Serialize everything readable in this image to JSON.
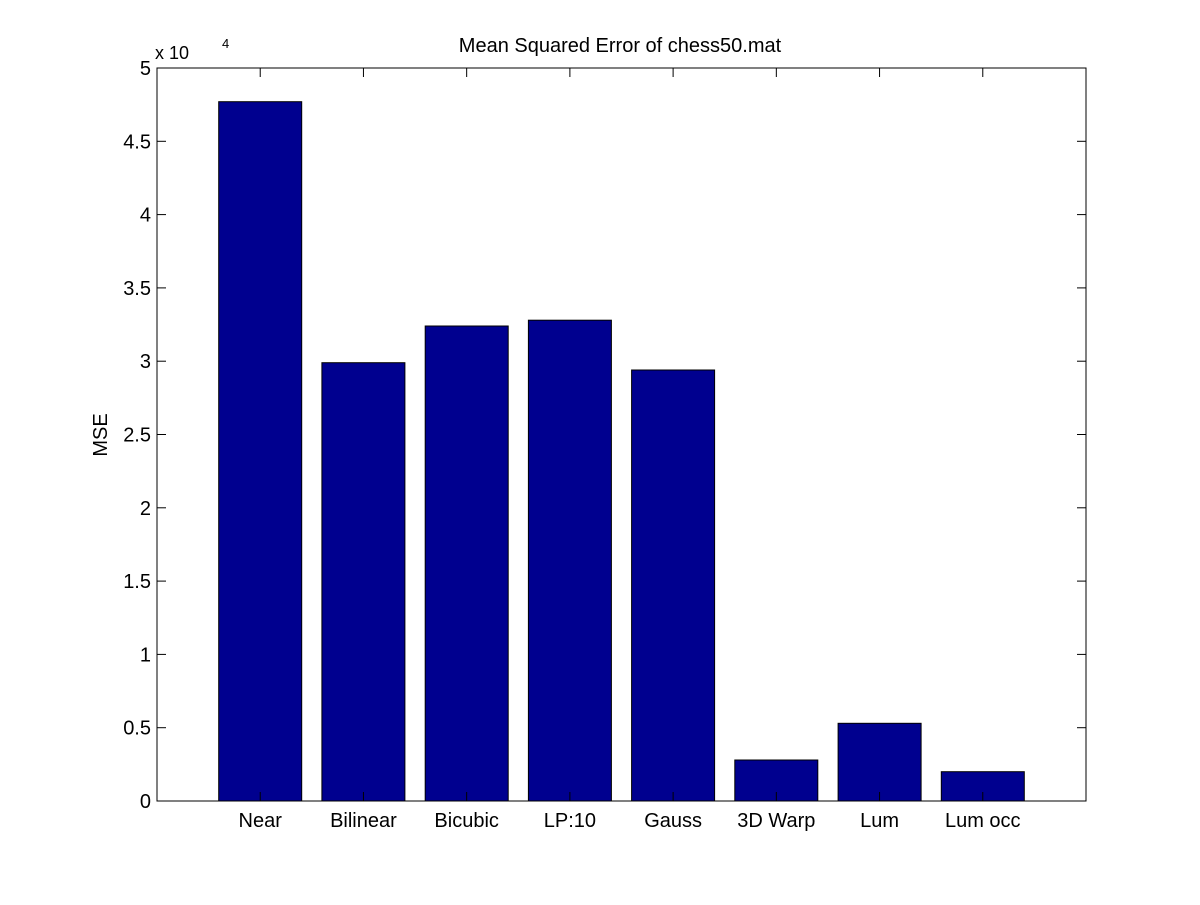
{
  "chart_data": {
    "type": "bar",
    "title": "Mean Squared Error of chess50.mat",
    "xlabel": "",
    "ylabel": "MSE",
    "categories": [
      "Near",
      "Bilinear",
      "Bicubic",
      "LP:10",
      "Gauss",
      "3D Warp",
      "Lum",
      "Lum occ"
    ],
    "values": [
      47700,
      29900,
      32400,
      32800,
      29400,
      2800,
      5300,
      2000
    ],
    "ylim": [
      0,
      50000
    ],
    "y_ticks": [
      0,
      5000,
      10000,
      15000,
      20000,
      25000,
      30000,
      35000,
      40000,
      45000,
      50000
    ],
    "y_tick_labels": [
      "0",
      "0.5",
      "1",
      "1.5",
      "2",
      "2.5",
      "3",
      "3.5",
      "4",
      "4.5",
      "5"
    ],
    "y_exponent_prefix": "x 10",
    "y_exponent_power": "4",
    "grid": false,
    "colors": {
      "bar_fill": "#00008f",
      "bar_stroke": "#000000",
      "axis": "#000000",
      "background": "#ffffff"
    }
  }
}
